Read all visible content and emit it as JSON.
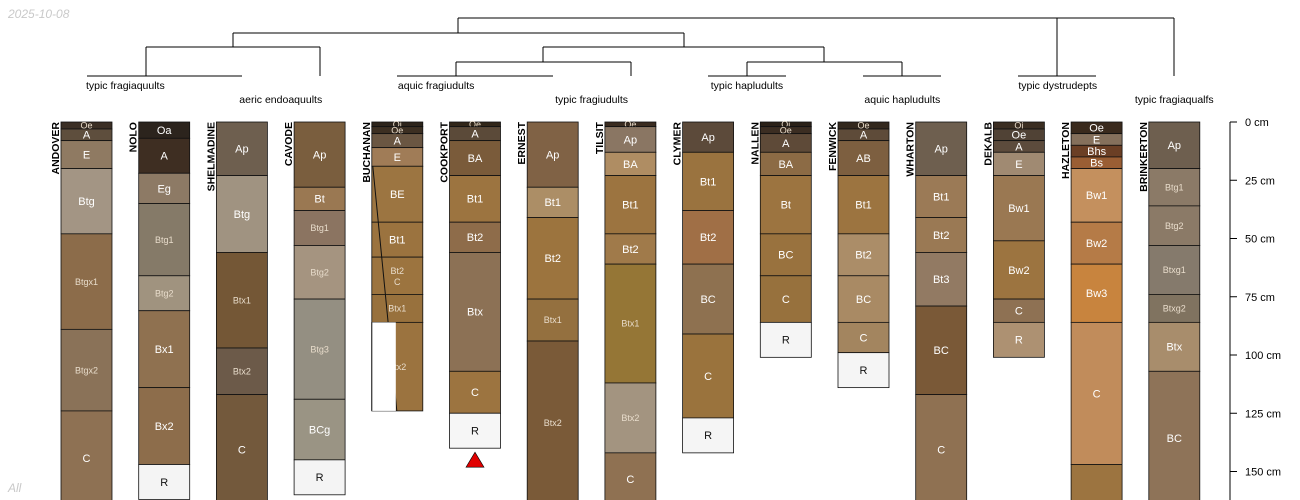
{
  "date": "2025-10-08",
  "corner_label": "All",
  "depth_axis": {
    "unit": "cm",
    "max_depth": 165,
    "ticks": [
      {
        "value": 0,
        "label": "0 cm"
      },
      {
        "value": 25,
        "label": "25 cm"
      },
      {
        "value": 50,
        "label": "50 cm"
      },
      {
        "value": 75,
        "label": "75 cm"
      },
      {
        "value": 100,
        "label": "100 cm"
      },
      {
        "value": 125,
        "label": "125 cm"
      },
      {
        "value": 150,
        "label": "150 cm"
      }
    ]
  },
  "taxa": [
    {
      "label": "typic fragiaquults",
      "profiles": [
        "ANDOVER",
        "NOLO"
      ]
    },
    {
      "label": "aeric endoaquults",
      "profiles": [
        "SHELMADINE",
        "CAVODE"
      ]
    },
    {
      "label": "aquic fragiudults",
      "profiles": [
        "BUCHANAN",
        "COOKPORT"
      ]
    },
    {
      "label": "typic fragiudults",
      "profiles": [
        "ERNEST",
        "TILSIT"
      ]
    },
    {
      "label": "typic hapludults",
      "profiles": [
        "CLYMER",
        "NALLEN"
      ]
    },
    {
      "label": "aquic hapludults",
      "profiles": [
        "FENWICK",
        "WHARTON"
      ]
    },
    {
      "label": "typic dystrudepts",
      "profiles": [
        "DEKALB",
        "HAZLETON"
      ]
    },
    {
      "label": "typic fragiaqualfs",
      "profiles": [
        "BRINKERTON"
      ]
    }
  ],
  "profiles": [
    {
      "id": "ANDOVER",
      "horizons": [
        {
          "name": "Oe",
          "top": 0,
          "bottom": 3,
          "color": "#3b2f25"
        },
        {
          "name": "A",
          "top": 3,
          "bottom": 8,
          "color": "#5e4e3d"
        },
        {
          "name": "E",
          "top": 8,
          "bottom": 20,
          "color": "#8f7a62"
        },
        {
          "name": "Btg",
          "top": 20,
          "bottom": 48,
          "color": "#a39584"
        },
        {
          "name": "Btgx1",
          "top": 48,
          "bottom": 89,
          "color": "#8c6c4a"
        },
        {
          "name": "Btgx2",
          "top": 89,
          "bottom": 124,
          "color": "#8a7258"
        },
        {
          "name": "C",
          "top": 124,
          "bottom": 165,
          "color": "#8e7153"
        }
      ]
    },
    {
      "id": "NOLO",
      "horizons": [
        {
          "name": "Oa",
          "top": 0,
          "bottom": 7,
          "color": "#2c241d"
        },
        {
          "name": "A",
          "top": 7,
          "bottom": 22,
          "color": "#3e2e22"
        },
        {
          "name": "Eg",
          "top": 22,
          "bottom": 35,
          "color": "#8d7a65"
        },
        {
          "name": "Btg1",
          "top": 35,
          "bottom": 66,
          "color": "#857a68"
        },
        {
          "name": "Btg2",
          "top": 66,
          "bottom": 81,
          "color": "#a0937f"
        },
        {
          "name": "Bx1",
          "top": 81,
          "bottom": 114,
          "color": "#8f7150"
        },
        {
          "name": "Bx2",
          "top": 114,
          "bottom": 147,
          "color": "#8d6d4b"
        },
        {
          "name": "R",
          "top": 147,
          "bottom": 162,
          "color": "#f4f4f4"
        }
      ]
    },
    {
      "id": "SHELMADINE",
      "horizons": [
        {
          "name": "Ap",
          "top": 0,
          "bottom": 23,
          "color": "#6e5f4f"
        },
        {
          "name": "Btg",
          "top": 23,
          "bottom": 56,
          "color": "#a09381"
        },
        {
          "name": "Btx1",
          "top": 56,
          "bottom": 97,
          "color": "#745736"
        },
        {
          "name": "Btx2",
          "top": 97,
          "bottom": 117,
          "color": "#6c5a49"
        },
        {
          "name": "C",
          "top": 117,
          "bottom": 165,
          "color": "#73593c"
        }
      ]
    },
    {
      "id": "CAVODE",
      "horizons": [
        {
          "name": "Ap",
          "top": 0,
          "bottom": 28,
          "color": "#7a5e3e"
        },
        {
          "name": "Bt",
          "top": 28,
          "bottom": 38,
          "color": "#9a7852"
        },
        {
          "name": "Btg1",
          "top": 38,
          "bottom": 53,
          "color": "#8b7461"
        },
        {
          "name": "Btg2",
          "top": 53,
          "bottom": 76,
          "color": "#a59480"
        },
        {
          "name": "Btg3",
          "top": 76,
          "bottom": 119,
          "color": "#948f82"
        },
        {
          "name": "BCg",
          "top": 119,
          "bottom": 145,
          "color": "#9a9484"
        },
        {
          "name": "R",
          "top": 145,
          "bottom": 160,
          "color": "#f4f4f4"
        }
      ]
    },
    {
      "id": "BUCHANAN",
      "horizons": [
        {
          "name": "Oi",
          "top": 0,
          "bottom": 2,
          "color": "#2d241b"
        },
        {
          "name": "Oe",
          "top": 2,
          "bottom": 5,
          "color": "#3c2f22"
        },
        {
          "name": "A",
          "top": 5,
          "bottom": 11,
          "color": "#6a5642"
        },
        {
          "name": "E",
          "top": 11,
          "bottom": 19,
          "color": "#a07c57"
        },
        {
          "name": "BE",
          "top": 19,
          "bottom": 43,
          "color": "#9c7541"
        },
        {
          "name": "Bt1",
          "top": 43,
          "bottom": 58,
          "color": "#9b733f"
        },
        {
          "name": "Bt2\nC",
          "top": 58,
          "bottom": 74,
          "color": "#9c743f"
        },
        {
          "name": "Btx1",
          "top": 74,
          "bottom": 86,
          "color": "#98713d"
        },
        {
          "name": "Btx2",
          "top": 86,
          "bottom": 124,
          "color": "#9b733f"
        }
      ]
    },
    {
      "id": "COOKPORT",
      "horizons": [
        {
          "name": "Oe",
          "top": 0,
          "bottom": 2,
          "color": "#312619"
        },
        {
          "name": "A",
          "top": 2,
          "bottom": 8,
          "color": "#5b4a39"
        },
        {
          "name": "BA",
          "top": 8,
          "bottom": 23,
          "color": "#7a5b3a"
        },
        {
          "name": "Bt1",
          "top": 23,
          "bottom": 43,
          "color": "#9c7440"
        },
        {
          "name": "Bt2",
          "top": 43,
          "bottom": 56,
          "color": "#8e6c4a"
        },
        {
          "name": "Btx",
          "top": 56,
          "bottom": 107,
          "color": "#8c7155"
        },
        {
          "name": "C",
          "top": 107,
          "bottom": 125,
          "color": "#9c7440"
        },
        {
          "name": "R",
          "top": 125,
          "bottom": 140,
          "color": "#f6f6f6"
        }
      ]
    },
    {
      "id": "ERNEST",
      "horizons": [
        {
          "name": "Ap",
          "top": 0,
          "bottom": 28,
          "color": "#806245"
        },
        {
          "name": "Bt1",
          "top": 28,
          "bottom": 41,
          "color": "#ac8e66"
        },
        {
          "name": "Bt2",
          "top": 41,
          "bottom": 76,
          "color": "#9c743e"
        },
        {
          "name": "Btx1",
          "top": 76,
          "bottom": 94,
          "color": "#94703f"
        },
        {
          "name": "Btx2",
          "top": 94,
          "bottom": 165,
          "color": "#7a5a38"
        }
      ]
    },
    {
      "id": "TILSIT",
      "horizons": [
        {
          "name": "Oe",
          "top": 0,
          "bottom": 2,
          "color": "#3a2c20"
        },
        {
          "name": "Ap",
          "top": 2,
          "bottom": 13,
          "color": "#8a7663"
        },
        {
          "name": "BA",
          "top": 13,
          "bottom": 23,
          "color": "#af8d63"
        },
        {
          "name": "Bt1",
          "top": 23,
          "bottom": 48,
          "color": "#9c7440"
        },
        {
          "name": "Bt2",
          "top": 48,
          "bottom": 61,
          "color": "#a07a4a"
        },
        {
          "name": "Btx1",
          "top": 61,
          "bottom": 112,
          "color": "#957636"
        },
        {
          "name": "Btx2",
          "top": 112,
          "bottom": 142,
          "color": "#a39480"
        },
        {
          "name": "C",
          "top": 142,
          "bottom": 165,
          "color": "#8f7152"
        }
      ]
    },
    {
      "id": "CLYMER",
      "horizons": [
        {
          "name": "Ap",
          "top": 0,
          "bottom": 13,
          "color": "#5c4a3a"
        },
        {
          "name": "Bt1",
          "top": 13,
          "bottom": 38,
          "color": "#9a733f"
        },
        {
          "name": "Bt2",
          "top": 38,
          "bottom": 61,
          "color": "#a06f46"
        },
        {
          "name": "BC",
          "top": 61,
          "bottom": 91,
          "color": "#8e7150"
        },
        {
          "name": "C",
          "top": 91,
          "bottom": 127,
          "color": "#9a733d"
        },
        {
          "name": "R",
          "top": 127,
          "bottom": 142,
          "color": "#f5f5f5"
        }
      ]
    },
    {
      "id": "NALLEN",
      "horizons": [
        {
          "name": "Oi",
          "top": 0,
          "bottom": 2,
          "color": "#2b2118"
        },
        {
          "name": "Oe",
          "top": 2,
          "bottom": 5,
          "color": "#3b2d22"
        },
        {
          "name": "A",
          "top": 5,
          "bottom": 13,
          "color": "#5e4a38"
        },
        {
          "name": "BA",
          "top": 13,
          "bottom": 23,
          "color": "#8c6b45"
        },
        {
          "name": "Bt",
          "top": 23,
          "bottom": 48,
          "color": "#9c7440"
        },
        {
          "name": "BC",
          "top": 48,
          "bottom": 66,
          "color": "#99723e"
        },
        {
          "name": "C",
          "top": 66,
          "bottom": 86,
          "color": "#97713d"
        },
        {
          "name": "R",
          "top": 86,
          "bottom": 101,
          "color": "#f5f5f5"
        }
      ]
    },
    {
      "id": "FENWICK",
      "horizons": [
        {
          "name": "Oe",
          "top": 0,
          "bottom": 3,
          "color": "#33281d"
        },
        {
          "name": "A",
          "top": 3,
          "bottom": 8,
          "color": "#5e4b39"
        },
        {
          "name": "AB",
          "top": 8,
          "bottom": 23,
          "color": "#7d5f40"
        },
        {
          "name": "Bt1",
          "top": 23,
          "bottom": 48,
          "color": "#9c7440"
        },
        {
          "name": "Bt2",
          "top": 48,
          "bottom": 66,
          "color": "#ab8d68"
        },
        {
          "name": "BC",
          "top": 66,
          "bottom": 86,
          "color": "#a98a64"
        },
        {
          "name": "C",
          "top": 86,
          "bottom": 99,
          "color": "#a3855f"
        },
        {
          "name": "R",
          "top": 99,
          "bottom": 114,
          "color": "#f5f5f5"
        }
      ]
    },
    {
      "id": "WHARTON",
      "horizons": [
        {
          "name": "Ap",
          "top": 0,
          "bottom": 23,
          "color": "#6e5f4f"
        },
        {
          "name": "Bt1",
          "top": 23,
          "bottom": 41,
          "color": "#9b7a56"
        },
        {
          "name": "Bt2",
          "top": 41,
          "bottom": 56,
          "color": "#9a7954"
        },
        {
          "name": "Bt3",
          "top": 56,
          "bottom": 79,
          "color": "#927a63"
        },
        {
          "name": "BC",
          "top": 79,
          "bottom": 117,
          "color": "#7a5937"
        },
        {
          "name": "C",
          "top": 117,
          "bottom": 165,
          "color": "#8f7152"
        }
      ]
    },
    {
      "id": "DEKALB",
      "horizons": [
        {
          "name": "Oi",
          "top": 0,
          "bottom": 3,
          "color": "#3b2e22"
        },
        {
          "name": "Oe",
          "top": 3,
          "bottom": 8,
          "color": "#504235"
        },
        {
          "name": "A",
          "top": 8,
          "bottom": 13,
          "color": "#5c4b3c"
        },
        {
          "name": "E",
          "top": 13,
          "bottom": 23,
          "color": "#a08a72"
        },
        {
          "name": "Bw1",
          "top": 23,
          "bottom": 51,
          "color": "#9a7852"
        },
        {
          "name": "Bw2",
          "top": 51,
          "bottom": 76,
          "color": "#9c7440"
        },
        {
          "name": "C",
          "top": 76,
          "bottom": 86,
          "color": "#8e7153"
        },
        {
          "name": "R",
          "top": 86,
          "bottom": 101,
          "color": "#ad9172"
        }
      ]
    },
    {
      "id": "HAZLETON",
      "horizons": [
        {
          "name": "Oe",
          "top": 0,
          "bottom": 5,
          "color": "#3a2a1d"
        },
        {
          "name": "E",
          "top": 5,
          "bottom": 10,
          "color": "#85705c"
        },
        {
          "name": "Bhs",
          "top": 10,
          "bottom": 15,
          "color": "#6b3f25"
        },
        {
          "name": "Bs",
          "top": 15,
          "bottom": 20,
          "color": "#9a5e34"
        },
        {
          "name": "Bw1",
          "top": 20,
          "bottom": 43,
          "color": "#c4905e"
        },
        {
          "name": "Bw2",
          "top": 43,
          "bottom": 61,
          "color": "#b57b47"
        },
        {
          "name": "Bw3",
          "top": 61,
          "bottom": 86,
          "color": "#c8843e"
        },
        {
          "name": "C",
          "top": 86,
          "bottom": 147,
          "color": "#c18c5b"
        },
        {
          "name": "",
          "top": 147,
          "bottom": 165,
          "color": "#9c7440"
        }
      ]
    },
    {
      "id": "BRINKERTON",
      "horizons": [
        {
          "name": "Ap",
          "top": 0,
          "bottom": 20,
          "color": "#6e5f4f"
        },
        {
          "name": "Btg1",
          "top": 20,
          "bottom": 36,
          "color": "#8b7a67"
        },
        {
          "name": "Btg2",
          "top": 36,
          "bottom": 53,
          "color": "#8b7a67"
        },
        {
          "name": "Btxg1",
          "top": 53,
          "bottom": 74,
          "color": "#857a6c"
        },
        {
          "name": "Btxg2",
          "top": 74,
          "bottom": 86,
          "color": "#807360"
        },
        {
          "name": "Btx",
          "top": 86,
          "bottom": 107,
          "color": "#a88d6c"
        },
        {
          "name": "BC",
          "top": 107,
          "bottom": 165,
          "color": "#8e7358"
        }
      ]
    }
  ],
  "truncation_marker": {
    "profile": "COOKPORT",
    "color": "#e00000"
  }
}
